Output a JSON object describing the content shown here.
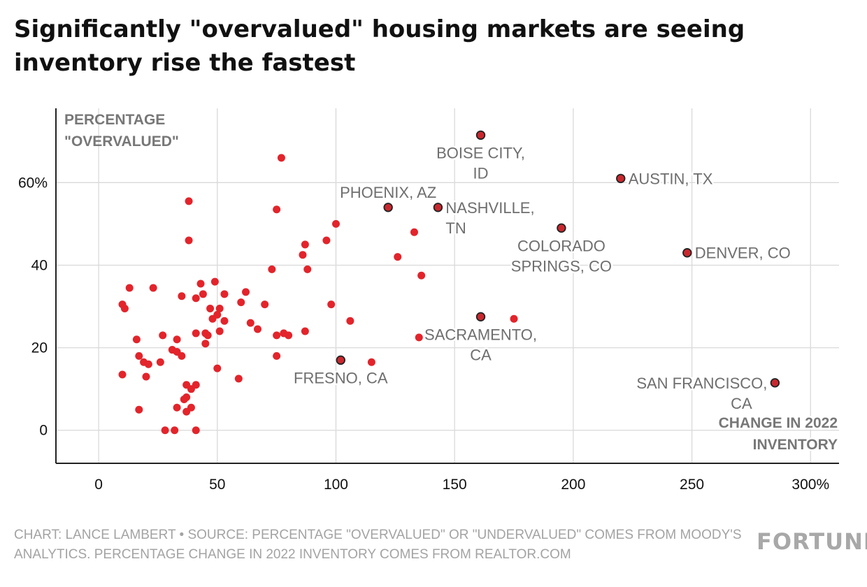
{
  "title": "Significantly \"overvalued\" housing markets are seeing inventory rise the fastest",
  "footer": {
    "credit": "CHART: LANCE LAMBERT • SOURCE: PERCENTAGE \"OVERVALUED\" OR \"UNDERVALUED\" COMES FROM MOODY'S ANALYTICS. PERCENTAGE CHANGE IN 2022 INVENTORY COMES FROM REALTOR.COM",
    "logo": "FORTUNE"
  },
  "colors": {
    "dot": "#e3242b",
    "highlight_dot": "#c8282e",
    "highlight_stroke": "#222222",
    "grid": "#d9d9d9",
    "axis": "#222222",
    "label": "#6e6e6e",
    "axis_title": "#777777"
  },
  "chart_data": {
    "type": "scatter",
    "title": "Significantly \"overvalued\" housing markets are seeing inventory rise the fastest",
    "xlabel": "CHANGE IN 2022 INVENTORY",
    "ylabel": "PERCENTAGE \"OVERVALUED\"",
    "xlabel_lines": [
      "CHANGE IN 2022",
      "INVENTORY"
    ],
    "ylabel_lines": [
      "PERCENTAGE",
      "\"OVERVALUED\""
    ],
    "xlim": [
      -18,
      312
    ],
    "ylim": [
      -8,
      78
    ],
    "x_ticks": [
      0,
      50,
      100,
      150,
      200,
      250,
      300
    ],
    "x_tick_labels": [
      "0",
      "50",
      "100",
      "150",
      "200",
      "250",
      "300%"
    ],
    "y_ticks": [
      0,
      20,
      40,
      60
    ],
    "y_tick_labels": [
      "0",
      "20",
      "40",
      "60%"
    ],
    "grid": true,
    "highlighted": [
      {
        "name": "BOISE CITY, ID",
        "lines": [
          "BOISE CITY,",
          "ID"
        ],
        "x": 161,
        "y": 71.5,
        "anchor": "middle",
        "pos": "below"
      },
      {
        "name": "AUSTIN, TX",
        "lines": [
          "AUSTIN, TX"
        ],
        "x": 220,
        "y": 61,
        "anchor": "start",
        "pos": "right"
      },
      {
        "name": "PHOENIX, AZ",
        "lines": [
          "PHOENIX, AZ"
        ],
        "x": 122,
        "y": 54,
        "anchor": "middle",
        "pos": "above"
      },
      {
        "name": "NASHVILLE, TN",
        "lines": [
          "NASHVILLE,",
          "TN"
        ],
        "x": 143,
        "y": 54,
        "anchor": "start",
        "pos": "right"
      },
      {
        "name": "COLORADO SPRINGS, CO",
        "lines": [
          "COLORADO",
          "SPRINGS, CO"
        ],
        "x": 195,
        "y": 49,
        "anchor": "middle",
        "pos": "below"
      },
      {
        "name": "DENVER, CO",
        "lines": [
          "DENVER, CO"
        ],
        "x": 248,
        "y": 43,
        "anchor": "start",
        "pos": "right"
      },
      {
        "name": "SACRAMENTO, CA",
        "lines": [
          "SACRAMENTO,",
          "CA"
        ],
        "x": 161,
        "y": 27.5,
        "anchor": "middle",
        "pos": "below"
      },
      {
        "name": "FRESNO, CA",
        "lines": [
          "FRESNO, CA"
        ],
        "x": 102,
        "y": 17,
        "anchor": "middle",
        "pos": "below"
      },
      {
        "name": "SAN FRANCISCO, CA",
        "lines": [
          "SAN FRANCISCO,",
          "CA"
        ],
        "x": 285,
        "y": 11.5,
        "anchor": "end",
        "pos": "left"
      }
    ],
    "points": [
      [
        77,
        66
      ],
      [
        38,
        55.5
      ],
      [
        75,
        53.5
      ],
      [
        100,
        50
      ],
      [
        38,
        46
      ],
      [
        96,
        46
      ],
      [
        87,
        45
      ],
      [
        133,
        48
      ],
      [
        86,
        42.5
      ],
      [
        126,
        42
      ],
      [
        73,
        39
      ],
      [
        88,
        39
      ],
      [
        136,
        37.5
      ],
      [
        13,
        34.5
      ],
      [
        23,
        34.5
      ],
      [
        43,
        35.5
      ],
      [
        49,
        36
      ],
      [
        44,
        33
      ],
      [
        35,
        32.5
      ],
      [
        41,
        32
      ],
      [
        53,
        33
      ],
      [
        62,
        33.5
      ],
      [
        10,
        30.5
      ],
      [
        11,
        29.5
      ],
      [
        47,
        29.5
      ],
      [
        51,
        29.5
      ],
      [
        60,
        31
      ],
      [
        70,
        30.5
      ],
      [
        98,
        30.5
      ],
      [
        48,
        27
      ],
      [
        50,
        28
      ],
      [
        53,
        26.5
      ],
      [
        64,
        26
      ],
      [
        106,
        26.5
      ],
      [
        175,
        27
      ],
      [
        45,
        23.5
      ],
      [
        41,
        23.5
      ],
      [
        46,
        23
      ],
      [
        51,
        24
      ],
      [
        67,
        24.5
      ],
      [
        75,
        23
      ],
      [
        78,
        23.5
      ],
      [
        80,
        23
      ],
      [
        87,
        24
      ],
      [
        45,
        21
      ],
      [
        27,
        23
      ],
      [
        33,
        22
      ],
      [
        16,
        22
      ],
      [
        135,
        22.5
      ],
      [
        31,
        19.5
      ],
      [
        33,
        19
      ],
      [
        35,
        18
      ],
      [
        17,
        18
      ],
      [
        19,
        16.5
      ],
      [
        21,
        16
      ],
      [
        26,
        16.5
      ],
      [
        75,
        18
      ],
      [
        115,
        16.5
      ],
      [
        50,
        15
      ],
      [
        10,
        13.5
      ],
      [
        20,
        13
      ],
      [
        59,
        12.5
      ],
      [
        37,
        11
      ],
      [
        41,
        11
      ],
      [
        39,
        10
      ],
      [
        37,
        8
      ],
      [
        36,
        7.5
      ],
      [
        33,
        5.5
      ],
      [
        39,
        5.5
      ],
      [
        17,
        5
      ],
      [
        37,
        4.5
      ],
      [
        28,
        0
      ],
      [
        32,
        0
      ],
      [
        41,
        0
      ]
    ]
  }
}
